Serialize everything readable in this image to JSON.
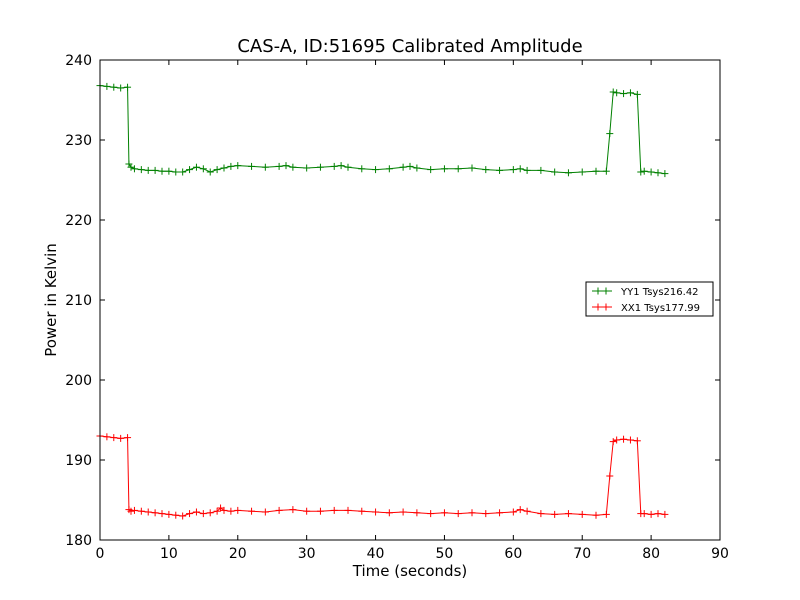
{
  "chart_data": {
    "type": "line",
    "title": "CAS-A, ID:51695 Calibrated Amplitude",
    "xlabel": "Time (seconds)",
    "ylabel": "Power in Kelvin",
    "xlim": [
      0,
      90
    ],
    "ylim": [
      180,
      240
    ],
    "xticks": [
      0,
      10,
      20,
      30,
      40,
      50,
      60,
      70,
      80,
      90
    ],
    "yticks": [
      180,
      190,
      200,
      210,
      220,
      230,
      240
    ],
    "grid": false,
    "legend_position": "center-right",
    "marker": "+",
    "series": [
      {
        "name": "YY1 Tsys216.42",
        "color": "#008000",
        "x": [
          0,
          1,
          2,
          3,
          4,
          4.2,
          4.5,
          5,
          6,
          7,
          8,
          9,
          10,
          11,
          12,
          13,
          14,
          15,
          16,
          17,
          18,
          19,
          20,
          22,
          24,
          26,
          27,
          28,
          30,
          32,
          34,
          35,
          36,
          38,
          40,
          42,
          44,
          45,
          46,
          48,
          50,
          52,
          54,
          56,
          58,
          60,
          61,
          62,
          64,
          66,
          68,
          70,
          72,
          73.5,
          74,
          74.5,
          75,
          76,
          77,
          78,
          78.5,
          79,
          80,
          81,
          82
        ],
        "values": [
          236.8,
          236.7,
          236.6,
          236.5,
          236.6,
          227.0,
          226.6,
          226.4,
          226.3,
          226.2,
          226.2,
          226.1,
          226.1,
          226.0,
          226.0,
          226.3,
          226.6,
          226.4,
          226.0,
          226.3,
          226.5,
          226.7,
          226.8,
          226.7,
          226.6,
          226.7,
          226.8,
          226.6,
          226.5,
          226.6,
          226.7,
          226.8,
          226.6,
          226.4,
          226.3,
          226.4,
          226.6,
          226.7,
          226.5,
          226.3,
          226.4,
          226.4,
          226.5,
          226.3,
          226.2,
          226.3,
          226.4,
          226.2,
          226.2,
          226.0,
          225.9,
          226.0,
          226.1,
          226.1,
          230.8,
          236.0,
          235.9,
          235.8,
          235.9,
          235.7,
          226.0,
          226.1,
          226.0,
          225.9,
          225.8
        ]
      },
      {
        "name": "XX1 Tsys177.99",
        "color": "#ff0000",
        "x": [
          0,
          1,
          2,
          3,
          4,
          4.2,
          4.5,
          5,
          6,
          7,
          8,
          9,
          10,
          11,
          12,
          13,
          14,
          15,
          16,
          17,
          17.5,
          18,
          19,
          20,
          22,
          24,
          26,
          28,
          30,
          32,
          34,
          36,
          38,
          40,
          42,
          44,
          46,
          48,
          50,
          52,
          54,
          56,
          58,
          60,
          61,
          62,
          64,
          66,
          68,
          70,
          72,
          73.5,
          74,
          74.5,
          75,
          76,
          77,
          78,
          78.5,
          79,
          80,
          81,
          82
        ],
        "values": [
          193.0,
          192.9,
          192.8,
          192.7,
          192.8,
          183.8,
          183.6,
          183.7,
          183.6,
          183.5,
          183.4,
          183.3,
          183.2,
          183.1,
          183.0,
          183.3,
          183.5,
          183.3,
          183.4,
          183.6,
          184.0,
          183.7,
          183.6,
          183.7,
          183.6,
          183.5,
          183.7,
          183.8,
          183.6,
          183.6,
          183.7,
          183.7,
          183.6,
          183.5,
          183.4,
          183.5,
          183.4,
          183.3,
          183.4,
          183.3,
          183.4,
          183.3,
          183.4,
          183.5,
          183.8,
          183.6,
          183.3,
          183.2,
          183.3,
          183.2,
          183.1,
          183.2,
          188.0,
          192.3,
          192.5,
          192.6,
          192.5,
          192.4,
          183.3,
          183.3,
          183.2,
          183.3,
          183.2
        ]
      }
    ]
  }
}
